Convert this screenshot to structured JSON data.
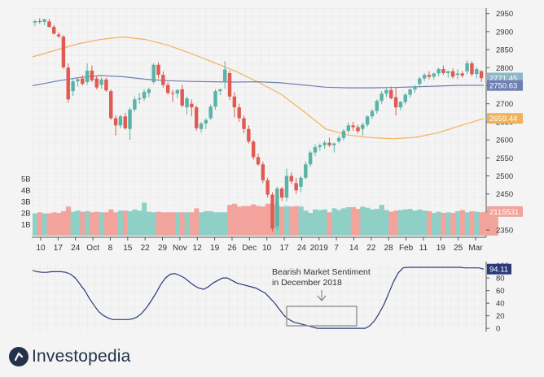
{
  "chart_data": [
    {
      "type": "candlestick",
      "title": "",
      "y_axis": {
        "ticks": [
          2350,
          2400,
          2450,
          2500,
          2550,
          2600,
          2650,
          2700,
          2750,
          2800,
          2850,
          2900,
          2950
        ],
        "range": [
          2330,
          2965
        ]
      },
      "volume_axis": {
        "ticks": [
          "1B",
          "2B",
          "3B",
          "4B",
          "5B"
        ]
      },
      "x_axis": {
        "tick_labels": [
          "10",
          "17",
          "24",
          "Oct",
          "8",
          "15",
          "22",
          "29",
          "Nov",
          "12",
          "19",
          "26",
          "Dec",
          "10",
          "17",
          "24",
          "2019",
          "7",
          "14",
          "22",
          "28",
          "Feb",
          "11",
          "19",
          "25",
          "Mar"
        ]
      },
      "price_labels": [
        {
          "label": "2771.45",
          "value": 2771.45,
          "color": "#8fb7c9"
        },
        {
          "label": "2750.63",
          "value": 2750.63,
          "color": "#6f7fb3"
        },
        {
          "label": "2659.44",
          "value": 2659.44,
          "color": "#f0b25a"
        },
        {
          "label": "2115531",
          "value": 2115531,
          "color": "#f2a39c"
        }
      ],
      "candles": [
        {
          "o": 2925,
          "h": 2933,
          "l": 2915,
          "c": 2929
        },
        {
          "o": 2929,
          "h": 2937,
          "l": 2922,
          "c": 2927
        },
        {
          "o": 2927,
          "h": 2936,
          "l": 2918,
          "c": 2934
        },
        {
          "o": 2928,
          "h": 2935,
          "l": 2910,
          "c": 2913
        },
        {
          "o": 2913,
          "h": 2918,
          "l": 2892,
          "c": 2894
        },
        {
          "o": 2892,
          "h": 2898,
          "l": 2882,
          "c": 2887
        },
        {
          "o": 2886,
          "h": 2890,
          "l": 2797,
          "c": 2801
        },
        {
          "o": 2800,
          "h": 2812,
          "l": 2703,
          "c": 2712
        },
        {
          "o": 2735,
          "h": 2768,
          "l": 2722,
          "c": 2762
        },
        {
          "o": 2762,
          "h": 2772,
          "l": 2748,
          "c": 2768
        },
        {
          "o": 2770,
          "h": 2780,
          "l": 2750,
          "c": 2755
        },
        {
          "o": 2760,
          "h": 2812,
          "l": 2752,
          "c": 2792
        },
        {
          "o": 2792,
          "h": 2806,
          "l": 2760,
          "c": 2765
        },
        {
          "o": 2770,
          "h": 2778,
          "l": 2740,
          "c": 2745
        },
        {
          "o": 2752,
          "h": 2773,
          "l": 2742,
          "c": 2767
        },
        {
          "o": 2767,
          "h": 2772,
          "l": 2733,
          "c": 2737
        },
        {
          "o": 2735,
          "h": 2740,
          "l": 2655,
          "c": 2660
        },
        {
          "o": 2660,
          "h": 2668,
          "l": 2612,
          "c": 2640
        },
        {
          "o": 2640,
          "h": 2670,
          "l": 2632,
          "c": 2665
        },
        {
          "o": 2665,
          "h": 2675,
          "l": 2628,
          "c": 2632
        },
        {
          "o": 2630,
          "h": 2690,
          "l": 2600,
          "c": 2684
        },
        {
          "o": 2684,
          "h": 2720,
          "l": 2678,
          "c": 2712
        },
        {
          "o": 2712,
          "h": 2730,
          "l": 2700,
          "c": 2715
        },
        {
          "o": 2715,
          "h": 2740,
          "l": 2708,
          "c": 2733
        },
        {
          "o": 2730,
          "h": 2745,
          "l": 2718,
          "c": 2740
        },
        {
          "o": 2760,
          "h": 2812,
          "l": 2755,
          "c": 2808
        },
        {
          "o": 2808,
          "h": 2815,
          "l": 2770,
          "c": 2780
        },
        {
          "o": 2780,
          "h": 2790,
          "l": 2745,
          "c": 2752
        },
        {
          "o": 2752,
          "h": 2760,
          "l": 2725,
          "c": 2730
        },
        {
          "o": 2730,
          "h": 2738,
          "l": 2705,
          "c": 2728
        },
        {
          "o": 2728,
          "h": 2740,
          "l": 2715,
          "c": 2738
        },
        {
          "o": 2740,
          "h": 2752,
          "l": 2690,
          "c": 2695
        },
        {
          "o": 2690,
          "h": 2720,
          "l": 2670,
          "c": 2715
        },
        {
          "o": 2700,
          "h": 2712,
          "l": 2665,
          "c": 2690
        },
        {
          "o": 2690,
          "h": 2695,
          "l": 2625,
          "c": 2632
        },
        {
          "o": 2630,
          "h": 2650,
          "l": 2620,
          "c": 2645
        },
        {
          "o": 2645,
          "h": 2660,
          "l": 2630,
          "c": 2655
        },
        {
          "o": 2660,
          "h": 2698,
          "l": 2655,
          "c": 2692
        },
        {
          "o": 2692,
          "h": 2740,
          "l": 2684,
          "c": 2735
        },
        {
          "o": 2735,
          "h": 2742,
          "l": 2724,
          "c": 2740
        },
        {
          "o": 2760,
          "h": 2818,
          "l": 2742,
          "c": 2795
        },
        {
          "o": 2785,
          "h": 2792,
          "l": 2710,
          "c": 2720
        },
        {
          "o": 2720,
          "h": 2732,
          "l": 2662,
          "c": 2690
        },
        {
          "o": 2690,
          "h": 2700,
          "l": 2650,
          "c": 2660
        },
        {
          "o": 2660,
          "h": 2668,
          "l": 2618,
          "c": 2630
        },
        {
          "o": 2630,
          "h": 2640,
          "l": 2590,
          "c": 2595
        },
        {
          "o": 2595,
          "h": 2600,
          "l": 2545,
          "c": 2552
        },
        {
          "o": 2552,
          "h": 2562,
          "l": 2528,
          "c": 2532
        },
        {
          "o": 2532,
          "h": 2540,
          "l": 2480,
          "c": 2488
        },
        {
          "o": 2488,
          "h": 2495,
          "l": 2440,
          "c": 2448
        },
        {
          "o": 2448,
          "h": 2455,
          "l": 2346,
          "c": 2354
        },
        {
          "o": 2360,
          "h": 2470,
          "l": 2350,
          "c": 2465
        },
        {
          "o": 2465,
          "h": 2470,
          "l": 2430,
          "c": 2440
        },
        {
          "o": 2440,
          "h": 2520,
          "l": 2430,
          "c": 2500
        },
        {
          "o": 2500,
          "h": 2510,
          "l": 2478,
          "c": 2485
        },
        {
          "o": 2480,
          "h": 2495,
          "l": 2450,
          "c": 2460
        },
        {
          "o": 2470,
          "h": 2500,
          "l": 2455,
          "c": 2495
        },
        {
          "o": 2495,
          "h": 2540,
          "l": 2490,
          "c": 2532
        },
        {
          "o": 2532,
          "h": 2570,
          "l": 2525,
          "c": 2565
        },
        {
          "o": 2565,
          "h": 2588,
          "l": 2555,
          "c": 2580
        },
        {
          "o": 2580,
          "h": 2590,
          "l": 2570,
          "c": 2585
        },
        {
          "o": 2585,
          "h": 2598,
          "l": 2575,
          "c": 2592
        },
        {
          "o": 2592,
          "h": 2606,
          "l": 2580,
          "c": 2585
        },
        {
          "o": 2585,
          "h": 2592,
          "l": 2565,
          "c": 2590
        },
        {
          "o": 2596,
          "h": 2612,
          "l": 2590,
          "c": 2605
        },
        {
          "o": 2605,
          "h": 2630,
          "l": 2598,
          "c": 2625
        },
        {
          "o": 2625,
          "h": 2648,
          "l": 2618,
          "c": 2640
        },
        {
          "o": 2640,
          "h": 2650,
          "l": 2625,
          "c": 2635
        },
        {
          "o": 2635,
          "h": 2642,
          "l": 2618,
          "c": 2624
        },
        {
          "o": 2630,
          "h": 2648,
          "l": 2612,
          "c": 2642
        },
        {
          "o": 2642,
          "h": 2668,
          "l": 2636,
          "c": 2665
        },
        {
          "o": 2665,
          "h": 2685,
          "l": 2658,
          "c": 2680
        },
        {
          "o": 2680,
          "h": 2712,
          "l": 2672,
          "c": 2708
        },
        {
          "o": 2708,
          "h": 2735,
          "l": 2700,
          "c": 2728
        },
        {
          "o": 2728,
          "h": 2742,
          "l": 2718,
          "c": 2738
        },
        {
          "o": 2738,
          "h": 2748,
          "l": 2712,
          "c": 2715
        },
        {
          "o": 2718,
          "h": 2745,
          "l": 2668,
          "c": 2690
        },
        {
          "o": 2690,
          "h": 2708,
          "l": 2682,
          "c": 2705
        },
        {
          "o": 2705,
          "h": 2730,
          "l": 2698,
          "c": 2725
        },
        {
          "o": 2725,
          "h": 2742,
          "l": 2718,
          "c": 2740
        },
        {
          "o": 2740,
          "h": 2752,
          "l": 2730,
          "c": 2748
        },
        {
          "o": 2755,
          "h": 2775,
          "l": 2745,
          "c": 2770
        },
        {
          "o": 2770,
          "h": 2785,
          "l": 2762,
          "c": 2780
        },
        {
          "o": 2780,
          "h": 2790,
          "l": 2768,
          "c": 2775
        },
        {
          "o": 2775,
          "h": 2786,
          "l": 2768,
          "c": 2784
        },
        {
          "o": 2784,
          "h": 2800,
          "l": 2776,
          "c": 2796
        },
        {
          "o": 2796,
          "h": 2806,
          "l": 2780,
          "c": 2785
        },
        {
          "o": 2785,
          "h": 2792,
          "l": 2772,
          "c": 2790
        },
        {
          "o": 2790,
          "h": 2798,
          "l": 2770,
          "c": 2775
        },
        {
          "o": 2780,
          "h": 2796,
          "l": 2768,
          "c": 2784
        },
        {
          "o": 2784,
          "h": 2790,
          "l": 2772,
          "c": 2778
        },
        {
          "o": 2790,
          "h": 2820,
          "l": 2782,
          "c": 2812
        },
        {
          "o": 2812,
          "h": 2818,
          "l": 2776,
          "c": 2782
        },
        {
          "o": 2782,
          "h": 2802,
          "l": 2770,
          "c": 2796
        },
        {
          "o": 2790,
          "h": 2794,
          "l": 2760,
          "c": 2771
        }
      ],
      "moving_averages": [
        {
          "color": "#f0b25a",
          "values": [
            2830,
            2848,
            2866,
            2878,
            2885,
            2878,
            2862,
            2840,
            2815,
            2790,
            2760,
            2727,
            2680,
            2630,
            2613,
            2606,
            2603,
            2607,
            2620,
            2640,
            2659
          ]
        },
        {
          "color": "#6f7fb3",
          "values": [
            2750,
            2762,
            2772,
            2778,
            2775,
            2768,
            2764,
            2762,
            2761,
            2760,
            2761,
            2758,
            2752,
            2746,
            2744,
            2744,
            2745,
            2747,
            2749,
            2751,
            2751
          ]
        }
      ],
      "volume_levels": [
        1.95,
        2.05,
        1.95,
        1.95,
        2.05,
        2.0,
        2.15,
        2.55,
        2.1,
        2.2,
        2.1,
        2.15,
        2.05,
        2.1,
        2.05,
        2.05,
        2.3,
        2.05,
        2.2,
        2.2,
        2.15,
        2.3,
        2.2,
        2.9,
        2.1,
        2.05,
        2.1,
        2.05,
        2.05,
        2.05,
        2.05,
        2.05,
        2.05,
        2.05,
        2.4,
        2.05,
        2.15,
        2.15,
        2.05,
        2.05,
        2.05,
        2.7,
        2.8,
        2.55,
        2.6,
        2.6,
        2.75,
        2.6,
        2.55,
        2.8,
        2.8,
        2.65,
        2.55,
        2.6,
        2.55,
        2.6,
        2.55,
        2.2,
        2.0,
        2.3,
        2.25,
        2.3,
        2.05,
        2.4,
        2.25,
        2.4,
        2.5,
        2.5,
        2.35,
        2.55,
        2.45,
        2.3,
        2.35,
        2.7,
        2.25,
        2.1,
        2.2,
        2.25,
        2.3,
        2.35,
        2.2,
        2.3,
        2.2,
        2.15,
        2.0,
        2.1,
        2.0,
        2.05,
        2.0,
        2.15,
        2.25,
        2.05,
        2.15,
        2.1,
        2.05,
        2.1,
        2.1,
        2.0
      ]
    },
    {
      "type": "line",
      "title": "",
      "y_axis": {
        "ticks": [
          0,
          20,
          40,
          60,
          80,
          100
        ],
        "range": [
          -5,
          106
        ]
      },
      "price_label": {
        "label": "94.11",
        "value": 94.11,
        "color": "#2c3a7a"
      },
      "values": [
        92,
        90,
        89,
        89,
        90,
        90,
        90,
        89,
        86,
        80,
        70,
        60,
        47,
        36,
        26,
        20,
        16,
        14,
        14,
        14,
        14,
        15,
        18,
        24,
        33,
        44,
        56,
        70,
        80,
        86,
        87,
        84,
        80,
        74,
        68,
        64,
        62,
        66,
        72,
        76,
        80,
        80,
        76,
        72,
        70,
        68,
        66,
        64,
        60,
        56,
        48,
        40,
        30,
        20,
        14,
        10,
        8,
        6,
        4,
        2,
        0,
        0,
        0,
        0,
        0,
        0,
        0,
        0,
        0,
        0,
        0,
        4,
        12,
        24,
        38,
        56,
        74,
        88,
        96,
        97,
        97,
        97,
        97,
        97,
        97,
        97,
        97,
        97,
        97,
        97,
        97,
        96,
        96,
        96,
        96,
        94
      ],
      "annotation": {
        "text_line1": "Bearish Market Sentiment",
        "text_line2": "in December 2018"
      }
    }
  ],
  "brand": {
    "name": "Investopedia"
  }
}
